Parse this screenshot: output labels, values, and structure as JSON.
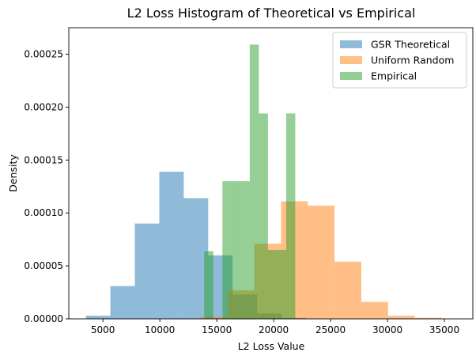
{
  "chart_data": {
    "type": "bar",
    "title": "L2 Loss Histogram of Theoretical vs Empirical",
    "xlabel": "L2 Loss Value",
    "ylabel": "Density",
    "xlim": [
      2000,
      37500
    ],
    "ylim": [
      0,
      0.000275
    ],
    "xticks": [
      5000,
      10000,
      15000,
      20000,
      25000,
      30000,
      35000
    ],
    "xtick_labels": [
      "5000",
      "10000",
      "15000",
      "20000",
      "25000",
      "30000",
      "35000"
    ],
    "yticks": [
      0,
      5e-05,
      0.0001,
      0.00015,
      0.0002,
      0.00025
    ],
    "ytick_labels": [
      "0.00000",
      "0.00005",
      "0.00010",
      "0.00015",
      "0.00020",
      "0.00025"
    ],
    "legend": {
      "position": "top-right"
    },
    "series": [
      {
        "name": "GSR Theoretical",
        "color": "#1f77b4",
        "opacity": 0.5,
        "bins": [
          {
            "x0": 3500,
            "x1": 5650,
            "y": 3e-06
          },
          {
            "x0": 5650,
            "x1": 7800,
            "y": 3.1e-05
          },
          {
            "x0": 7800,
            "x1": 9950,
            "y": 9e-05
          },
          {
            "x0": 9950,
            "x1": 12100,
            "y": 0.000139
          },
          {
            "x0": 12100,
            "x1": 14250,
            "y": 0.000114
          },
          {
            "x0": 14250,
            "x1": 16400,
            "y": 6e-05
          },
          {
            "x0": 16400,
            "x1": 18550,
            "y": 2.3e-05
          },
          {
            "x0": 18550,
            "x1": 20700,
            "y": 5e-06
          },
          {
            "x0": 20700,
            "x1": 22850,
            "y": 1e-06
          }
        ]
      },
      {
        "name": "Uniform Random",
        "color": "#ff7f0e",
        "opacity": 0.5,
        "bins": [
          {
            "x0": 13600,
            "x1": 15950,
            "y": 2e-06
          },
          {
            "x0": 15950,
            "x1": 18300,
            "y": 2.7e-05
          },
          {
            "x0": 18300,
            "x1": 20650,
            "y": 7.1e-05
          },
          {
            "x0": 20650,
            "x1": 23000,
            "y": 0.000111
          },
          {
            "x0": 23000,
            "x1": 25350,
            "y": 0.000107
          },
          {
            "x0": 25350,
            "x1": 27700,
            "y": 5.4e-05
          },
          {
            "x0": 27700,
            "x1": 30050,
            "y": 1.6e-05
          },
          {
            "x0": 30050,
            "x1": 32400,
            "y": 3e-06
          },
          {
            "x0": 32400,
            "x1": 34750,
            "y": 1e-06
          }
        ]
      },
      {
        "name": "Empirical",
        "color": "#2ca02c",
        "opacity": 0.5,
        "bins": [
          {
            "x0": 13900,
            "x1": 14700,
            "y": 6.4e-05
          },
          {
            "x0": 14700,
            "x1": 15500,
            "y": 0
          },
          {
            "x0": 15500,
            "x1": 16300,
            "y": 0.00013
          },
          {
            "x0": 16300,
            "x1": 17100,
            "y": 0.00013
          },
          {
            "x0": 17100,
            "x1": 17900,
            "y": 0.00013
          },
          {
            "x0": 17900,
            "x1": 18700,
            "y": 0.000259
          },
          {
            "x0": 18700,
            "x1": 19500,
            "y": 0.000194
          },
          {
            "x0": 19500,
            "x1": 20300,
            "y": 6.5e-05
          },
          {
            "x0": 20300,
            "x1": 21100,
            "y": 6.5e-05
          },
          {
            "x0": 21100,
            "x1": 21900,
            "y": 0.000194
          }
        ]
      }
    ]
  }
}
